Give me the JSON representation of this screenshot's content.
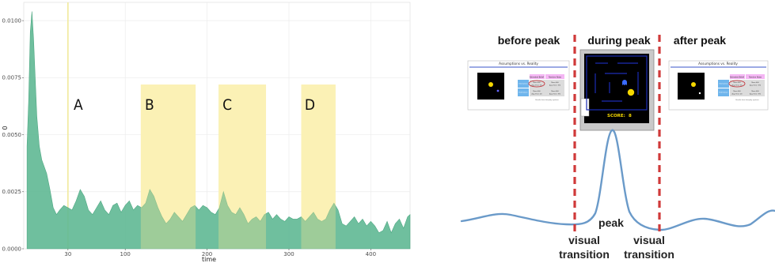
{
  "chart_data": [
    {
      "type": "area",
      "title": "",
      "xlabel": "time",
      "ylabel": "0",
      "xlim": [
        -24,
        448
      ],
      "ylim": [
        0,
        0.0108
      ],
      "x_ticks": [
        30,
        100,
        200,
        300,
        400
      ],
      "y_ticks": [
        0.0,
        0.0025,
        0.005,
        0.0075,
        0.01
      ],
      "y_tick_labels": [
        "0.0000",
        "0.0025",
        "0.0050",
        "0.0075",
        "0.0100"
      ],
      "grid": true,
      "fill_color": "#5fb894",
      "highlight_color": "#fdf6c3",
      "marker_line": {
        "x": 30,
        "color": "#f1ea9c"
      },
      "regions": [
        {
          "label": "A",
          "x_start": 29,
          "x_end": 31
        },
        {
          "label": "B",
          "x_start": 119,
          "x_end": 186
        },
        {
          "label": "C",
          "x_start": 214,
          "x_end": 272
        },
        {
          "label": "D",
          "x_start": 315,
          "x_end": 357
        }
      ],
      "series": [
        {
          "x": [
            -20,
            -18,
            -16,
            -14,
            -12,
            -10,
            -8,
            -5,
            -2,
            0,
            4,
            8,
            12,
            16,
            20,
            25,
            30,
            35,
            40,
            45,
            50,
            55,
            60,
            65,
            70,
            75,
            80,
            85,
            90,
            95,
            100,
            105,
            110,
            115,
            120,
            125,
            130,
            135,
            140,
            145,
            150,
            155,
            160,
            165,
            170,
            175,
            180,
            185,
            190,
            195,
            200,
            205,
            210,
            215,
            220,
            225,
            230,
            235,
            240,
            245,
            250,
            255,
            260,
            265,
            270,
            275,
            280,
            285,
            290,
            295,
            300,
            305,
            310,
            315,
            320,
            325,
            330,
            335,
            340,
            345,
            350,
            355,
            360,
            365,
            370,
            375,
            380,
            385,
            390,
            395,
            400,
            405,
            410,
            415,
            420,
            425,
            430,
            435,
            440,
            445,
            448
          ],
          "values": [
            0.0045,
            0.0065,
            0.0095,
            0.0104,
            0.0092,
            0.0075,
            0.0058,
            0.0045,
            0.0039,
            0.0037,
            0.0033,
            0.0026,
            0.0018,
            0.0015,
            0.0017,
            0.0019,
            0.0018,
            0.0017,
            0.0021,
            0.0026,
            0.0023,
            0.0017,
            0.0015,
            0.0018,
            0.0021,
            0.0017,
            0.0015,
            0.0019,
            0.002,
            0.0016,
            0.0019,
            0.0021,
            0.0017,
            0.0019,
            0.0018,
            0.002,
            0.0026,
            0.0023,
            0.0018,
            0.0014,
            0.0011,
            0.0013,
            0.0016,
            0.0014,
            0.0012,
            0.0015,
            0.0018,
            0.0019,
            0.0017,
            0.0019,
            0.0018,
            0.0016,
            0.0015,
            0.0018,
            0.0025,
            0.0019,
            0.0016,
            0.0015,
            0.0018,
            0.0015,
            0.0011,
            0.0013,
            0.0014,
            0.0012,
            0.0015,
            0.0016,
            0.0013,
            0.0015,
            0.0013,
            0.0012,
            0.0014,
            0.0013,
            0.0013,
            0.0014,
            0.0012,
            0.0014,
            0.0016,
            0.0013,
            0.0012,
            0.0013,
            0.0017,
            0.002,
            0.0017,
            0.0011,
            0.001,
            0.0012,
            0.0014,
            0.0011,
            0.0013,
            0.001,
            0.0012,
            0.001,
            0.0007,
            0.0008,
            0.0012,
            0.0007,
            0.0011,
            0.0013,
            0.0009,
            0.0014,
            0.0015
          ]
        }
      ]
    },
    {
      "type": "line",
      "title": "",
      "labels": {
        "before_peak": "before peak",
        "during_peak": "during peak",
        "after_peak": "after peak",
        "peak": "peak",
        "transition_left_1": "visual",
        "transition_left_2": "transition",
        "transition_right_1": "visual",
        "transition_right_2": "transition"
      },
      "line_color": "#6a9ac9",
      "dash_color": "#d03a3a",
      "screen_before": {
        "title": "Assumptions vs. Reality",
        "header_left": "Estimated Belief",
        "header_right": "Random Noise",
        "row_labels": [
          "Interaction",
          "Estimation"
        ],
        "cells": [
          "Mean 400",
          "Mean 400",
          "Avg. Error: 36",
          "Avg. Error: 390",
          "Mean 400",
          "Mean 400",
          "Avg. Error: 28",
          "Avg. Error: 392"
        ],
        "footer": "Results from Interplay systems"
      },
      "screen_after": {
        "title": "Assumptions vs. Reality",
        "header_left": "Estimated Belief",
        "header_right": "Random Noise",
        "row_labels": [
          "Interaction",
          "Estimation"
        ],
        "cells": [
          "Mean 400",
          "Mean 400",
          "Avg. Error: 36",
          "Avg. Error: 390",
          "Mean 400",
          "Mean 400",
          "Avg. Error: 28",
          "Avg. Error: 392"
        ],
        "footer": "Results from Interplay systems"
      },
      "game_screen": {
        "score_label": "SCORE:",
        "score_value": "8"
      }
    }
  ]
}
